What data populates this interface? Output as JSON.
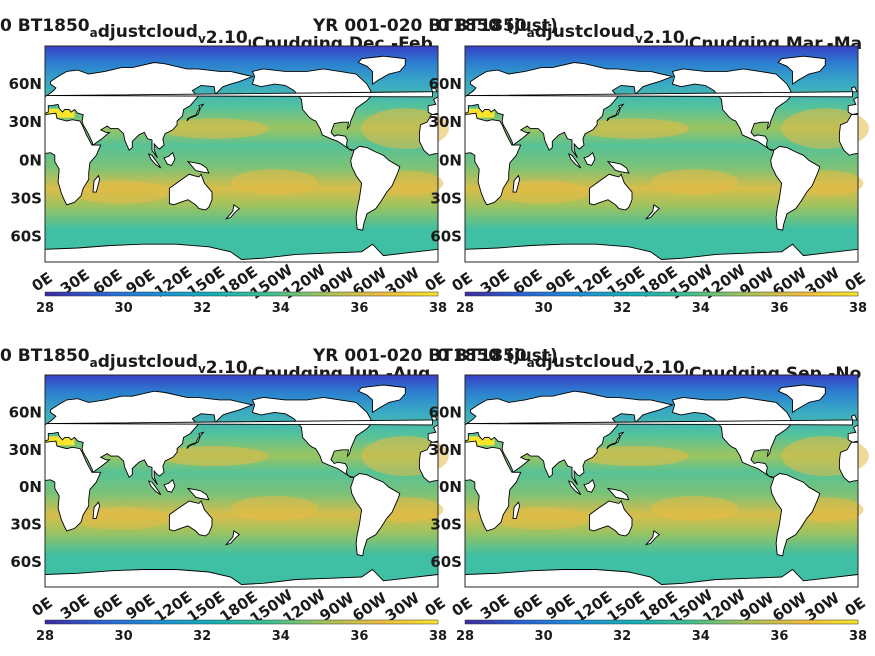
{
  "chart_data": [
    {
      "type": "heatmap",
      "title": "0 BT1850_adjustcloud_v2.10_Cnudging Dec.-Feb.",
      "title_parts": [
        {
          "t": "0 BT1850"
        },
        {
          "t": "a",
          "sub": true
        },
        {
          "t": "djustcloud"
        },
        {
          "t": "v",
          "sub": true
        },
        {
          "t": "2.10"
        },
        {
          "t": "l",
          "sub": true
        },
        {
          "t": "Cnudging Dec.-Feb."
        }
      ],
      "overlay_title": "YR 001-020 BT1850 (just)",
      "x_ticks": [
        "0E",
        "30E",
        "60E",
        "90E",
        "120E",
        "150E",
        "180E",
        "150W",
        "120W",
        "90W",
        "60W",
        "30W",
        "0E"
      ],
      "y_ticks": [
        "60N",
        "30N",
        "0N",
        "30S",
        "60S"
      ],
      "colorbar": {
        "ticks": [
          "28",
          "30",
          "32",
          "34",
          "36",
          "38"
        ],
        "min": 28,
        "max": 38
      }
    },
    {
      "type": "heatmap",
      "title": "0 BT1850_adjustcloud_v2.10_Cnudging Mar.-May",
      "title_parts": [
        {
          "t": "0 BT1850"
        },
        {
          "t": "a",
          "sub": true
        },
        {
          "t": "djustcloud"
        },
        {
          "t": "v",
          "sub": true
        },
        {
          "t": "2.10"
        },
        {
          "t": "l",
          "sub": true
        },
        {
          "t": "Cnudging Mar.-Ma"
        }
      ],
      "overlay_title": "",
      "x_ticks": [
        "0E",
        "30E",
        "60E",
        "90E",
        "120E",
        "150E",
        "180E",
        "150W",
        "120W",
        "90W",
        "60W",
        "30W",
        "0E"
      ],
      "y_ticks": [
        "60N",
        "30N",
        "0N",
        "30S",
        "60S"
      ],
      "colorbar": {
        "ticks": [
          "28",
          "30",
          "32",
          "34",
          "36",
          "38"
        ],
        "min": 28,
        "max": 38
      }
    },
    {
      "type": "heatmap",
      "title": "0 BT1850_adjustcloud_v2.10_Cnudging Jun.-Aug.",
      "title_parts": [
        {
          "t": "0 BT1850"
        },
        {
          "t": "a",
          "sub": true
        },
        {
          "t": "djustcloud"
        },
        {
          "t": "v",
          "sub": true
        },
        {
          "t": "2.10"
        },
        {
          "t": "l",
          "sub": true
        },
        {
          "t": "Cnudging Jun.-Aug."
        }
      ],
      "overlay_title": "YR 001-020 BT1850 (just)",
      "x_ticks": [
        "0E",
        "30E",
        "60E",
        "90E",
        "120E",
        "150E",
        "180E",
        "150W",
        "120W",
        "90W",
        "60W",
        "30W",
        "0E"
      ],
      "y_ticks": [
        "60N",
        "30N",
        "0N",
        "30S",
        "60S"
      ],
      "colorbar": {
        "ticks": [
          "28",
          "30",
          "32",
          "34",
          "36",
          "38"
        ],
        "min": 28,
        "max": 38
      }
    },
    {
      "type": "heatmap",
      "title": "0 BT1850_adjustcloud_v2.10_Cnudging Sep.-Nov.",
      "title_parts": [
        {
          "t": "0 BT1850"
        },
        {
          "t": "a",
          "sub": true
        },
        {
          "t": "djustcloud"
        },
        {
          "t": "v",
          "sub": true
        },
        {
          "t": "2.10"
        },
        {
          "t": "l",
          "sub": true
        },
        {
          "t": "Cnudging Sep.-No"
        }
      ],
      "overlay_title": "",
      "x_ticks": [
        "0E",
        "30E",
        "60E",
        "90E",
        "120E",
        "150E",
        "180E",
        "150W",
        "120W",
        "90W",
        "60W",
        "30W",
        "0E"
      ],
      "y_ticks": [
        "60N",
        "30N",
        "0N",
        "30S",
        "60S"
      ],
      "colorbar": {
        "ticks": [
          "28",
          "30",
          "32",
          "34",
          "36",
          "38"
        ],
        "min": 28,
        "max": 38
      }
    }
  ],
  "colors": {
    "colormap": [
      "#3b2a9e",
      "#2c62d6",
      "#1c8fd8",
      "#12b0b8",
      "#3ec18f",
      "#a6c25a",
      "#f0bd3c",
      "#f9e52a"
    ],
    "ocean_typical": "#45bfa8",
    "subtropical_high": "#e6bb46",
    "fresh_low": "#3a3fc4",
    "land": "#ffffff",
    "coastline": "#000000"
  }
}
